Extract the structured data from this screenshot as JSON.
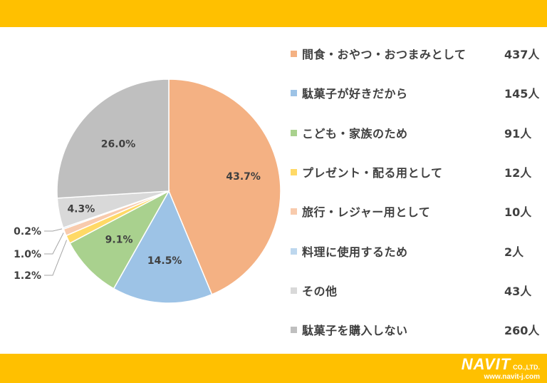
{
  "colors": {
    "bar": "#ffc000",
    "text": "#404040"
  },
  "chart_data": {
    "type": "pie",
    "slices": [
      {
        "name": "間食・おやつ・おつまみとして",
        "count": "437人",
        "value": 43.7,
        "label": "43.7%",
        "color": "#f4b183"
      },
      {
        "name": "駄菓子が好きだから",
        "count": "145人",
        "value": 14.5,
        "label": "14.5%",
        "color": "#9dc3e6"
      },
      {
        "name": "こども・家族のため",
        "count": "91人",
        "value": 9.1,
        "label": "9.1%",
        "color": "#a9d18e"
      },
      {
        "name": "プレゼント・配る用として",
        "count": "12人",
        "value": 1.2,
        "label": "1.2%",
        "color": "#ffd966"
      },
      {
        "name": "旅行・レジャー用として",
        "count": "10人",
        "value": 1.0,
        "label": "1.0%",
        "color": "#f8cbad"
      },
      {
        "name": "料理に使用するため",
        "count": "2人",
        "value": 0.2,
        "label": "0.2%",
        "color": "#bdd7ee"
      },
      {
        "name": "その他",
        "count": "43人",
        "value": 4.3,
        "label": "4.3%",
        "color": "#d9d9d9"
      },
      {
        "name": "駄菓子を購入しない",
        "count": "260人",
        "value": 26.0,
        "label": "26.0%",
        "color": "#bfbfbf"
      }
    ]
  },
  "footer": {
    "logo_text": "NAVIT",
    "logo_suffix": "CO.,LTD.",
    "url": "www.navit-j.com"
  }
}
